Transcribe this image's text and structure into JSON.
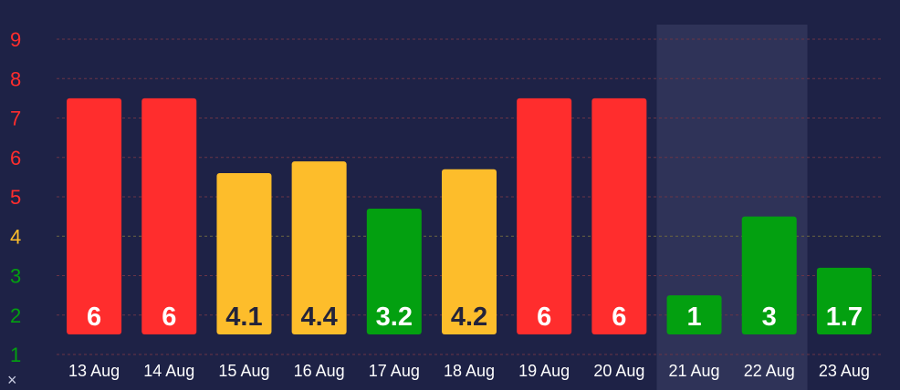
{
  "chart_data": {
    "type": "bar",
    "categories": [
      "13 Aug",
      "14 Aug",
      "15 Aug",
      "16 Aug",
      "17 Aug",
      "18 Aug",
      "19 Aug",
      "20 Aug",
      "21 Aug",
      "22 Aug",
      "23 Aug"
    ],
    "values": [
      6,
      6,
      4.1,
      4.4,
      3.2,
      4.2,
      6,
      6,
      1,
      3,
      1.7
    ],
    "bar_value_labels": [
      "6",
      "6",
      "4.1",
      "4.4",
      "3.2",
      "4.2",
      "6",
      "6",
      "1",
      "3",
      "1.7"
    ],
    "bar_levels": [
      "high",
      "high",
      "moderate",
      "moderate",
      "low",
      "moderate",
      "high",
      "high",
      "low",
      "low",
      "low"
    ],
    "y_ticks": [
      "1",
      "2",
      "3",
      "4",
      "5",
      "6",
      "7",
      "8",
      "9"
    ],
    "y_tick_levels": [
      "low",
      "low",
      "low",
      "moderate",
      "high",
      "high",
      "high",
      "high",
      "high"
    ],
    "ylim": [
      1,
      9
    ],
    "title": "",
    "xlabel": "",
    "ylabel": "",
    "grid": true,
    "highlighted_category": "21 Aug"
  },
  "colors": {
    "background": "#1e2246",
    "highlight_band": "#2f3358",
    "grid_line": "#6a3446",
    "grid_line_moderate": "#6b6440",
    "high": "#ff2d2d",
    "moderate": "#fdbd2b",
    "low": "#03a010",
    "label_light": "#ffffff",
    "label_dark": "#23233a"
  },
  "icons": {
    "corner": "close-icon"
  },
  "corner_glyph": "×"
}
